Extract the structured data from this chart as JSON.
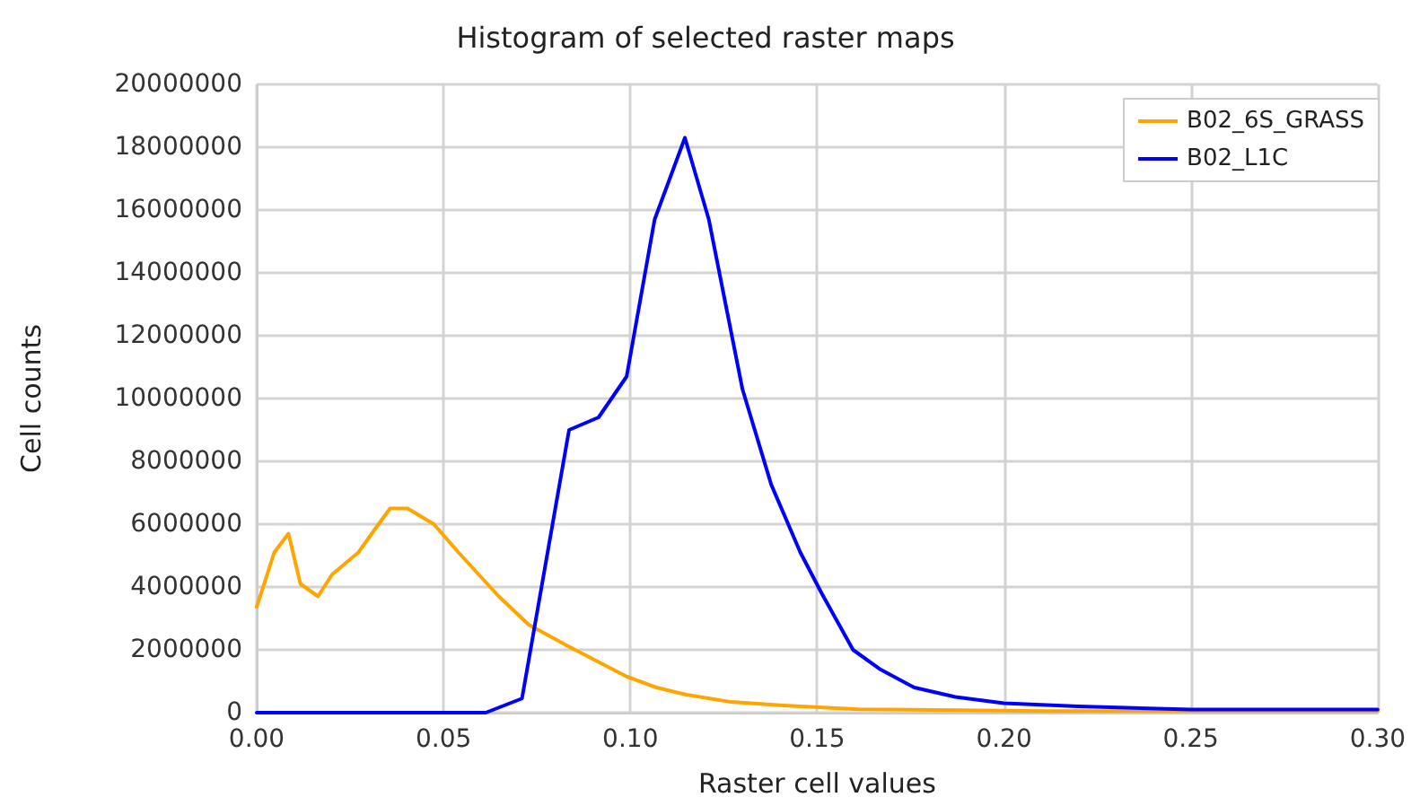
{
  "chart_data": {
    "type": "line",
    "title": "Histogram of selected raster maps",
    "xlabel": "Raster cell values",
    "ylabel": "Cell counts",
    "series": [
      {
        "name": "B02_6S_GRASS",
        "color": "#ffa500",
        "x": [
          0,
          0.0047,
          0.0085,
          0.0117,
          0.0164,
          0.0202,
          0.0272,
          0.032,
          0.0357,
          0.0404,
          0.0474,
          0.054,
          0.0648,
          0.0728,
          0.0836,
          0.099,
          0.107,
          0.115,
          0.127,
          0.141,
          0.161,
          0.211,
          0.3
        ],
        "values": [
          3370000,
          5100000,
          5700000,
          4100000,
          3700000,
          4400000,
          5100000,
          5900000,
          6500000,
          6500000,
          6000000,
          5100000,
          3700000,
          2800000,
          2100000,
          1150000,
          800000,
          570000,
          340000,
          230000,
          110000,
          50000,
          50000
        ]
      },
      {
        "name": "B02_L1C",
        "color": "#0000ff",
        "x": [
          0,
          0.0613,
          0.071,
          0.0836,
          0.0915,
          0.099,
          0.1065,
          0.1146,
          0.121,
          0.13,
          0.1377,
          0.1455,
          0.1512,
          0.1596,
          0.167,
          0.176,
          0.187,
          0.2,
          0.22,
          0.25,
          0.3
        ],
        "values": [
          0,
          0,
          450000,
          9000000,
          9400000,
          10700000,
          15700000,
          18300000,
          15700000,
          10300000,
          7260000,
          5100000,
          3800000,
          2000000,
          1370000,
          800000,
          500000,
          300000,
          200000,
          100000,
          100000
        ]
      }
    ],
    "xlim": [
      0,
      0.3
    ],
    "xticks": [
      {
        "value": 0,
        "label": "0.00"
      },
      {
        "value": 0.05,
        "label": "0.05"
      },
      {
        "value": 0.1,
        "label": "0.10"
      },
      {
        "value": 0.15,
        "label": "0.15"
      },
      {
        "value": 0.2,
        "label": "0.20"
      },
      {
        "value": 0.25,
        "label": "0.25"
      },
      {
        "value": 0.3,
        "label": "0.30"
      }
    ],
    "ylim": [
      0,
      20000000
    ],
    "yticks": [
      0,
      2000000,
      4000000,
      6000000,
      8000000,
      10000000,
      12000000,
      14000000,
      16000000,
      18000000,
      20000000
    ],
    "grid": true,
    "legend": "top right",
    "marker": "none",
    "line_style": "solid"
  }
}
